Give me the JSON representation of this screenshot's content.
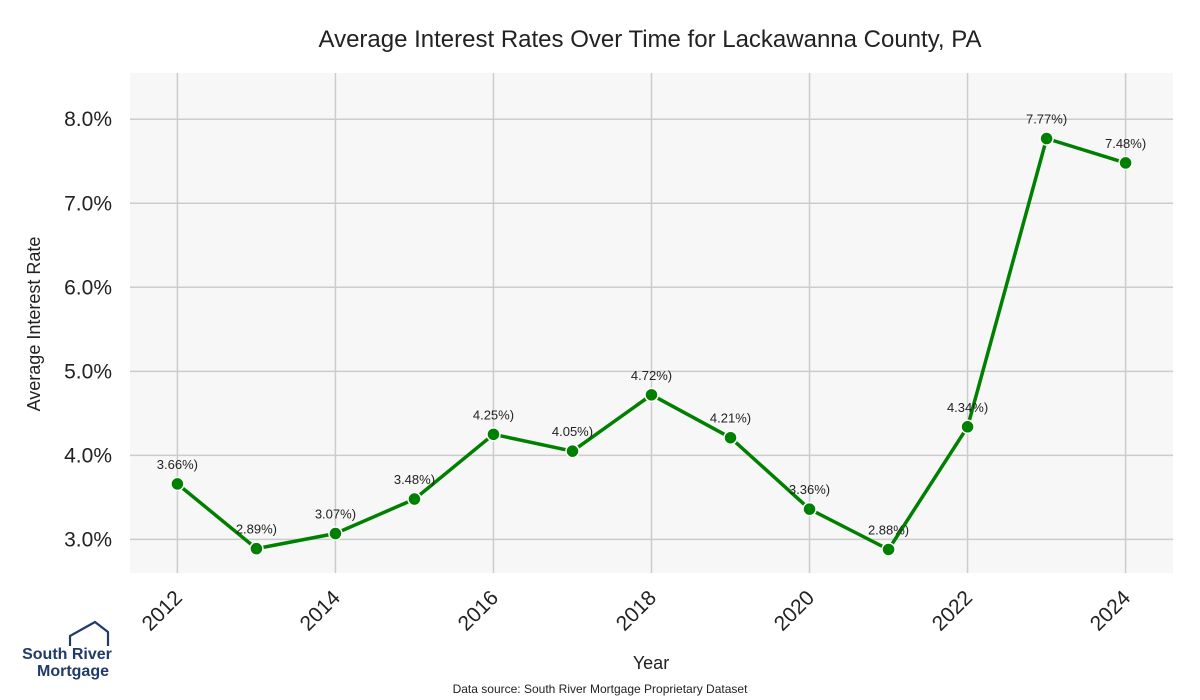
{
  "colors": {
    "line": "#008000",
    "plot_background": "#f7f7f7",
    "grid": "#cccccc",
    "logo_navy": "#1f3a6b"
  },
  "logo": {
    "line1": "South River",
    "line2": "Mortgage",
    "icon": "house-outline-icon"
  },
  "source_note": "Data source: South River Mortgage Proprietary Dataset",
  "chart_data": {
    "type": "line",
    "title": "Average Interest Rates Over Time for Lackawanna County, PA",
    "xlabel": "Year",
    "ylabel": "Average Interest Rate",
    "x": [
      2012,
      2013,
      2014,
      2015,
      2016,
      2017,
      2018,
      2019,
      2020,
      2021,
      2022,
      2023,
      2024
    ],
    "y": [
      3.66,
      2.89,
      3.07,
      3.48,
      4.25,
      4.05,
      4.72,
      4.21,
      3.36,
      2.88,
      4.34,
      7.77,
      7.48
    ],
    "data_labels": [
      "3.66%)",
      "2.89%)",
      "3.07%)",
      "3.48%)",
      "4.25%)",
      "4.05%)",
      "4.72%)",
      "4.21%)",
      "3.36%)",
      "2.88%)",
      "4.34%)",
      "7.77%)",
      "7.48%)"
    ],
    "xlim": [
      2011.4,
      2024.6
    ],
    "ylim": [
      2.6,
      8.55
    ],
    "x_ticks": [
      2012,
      2014,
      2016,
      2018,
      2020,
      2022,
      2024
    ],
    "x_tick_labels": [
      "2012",
      "2014",
      "2016",
      "2018",
      "2020",
      "2022",
      "2024"
    ],
    "y_ticks": [
      3,
      4,
      5,
      6,
      7,
      8
    ],
    "y_tick_labels": [
      "3.0%",
      "4.0%",
      "5.0%",
      "6.0%",
      "7.0%",
      "8.0%"
    ],
    "grid": true,
    "markers": true
  }
}
